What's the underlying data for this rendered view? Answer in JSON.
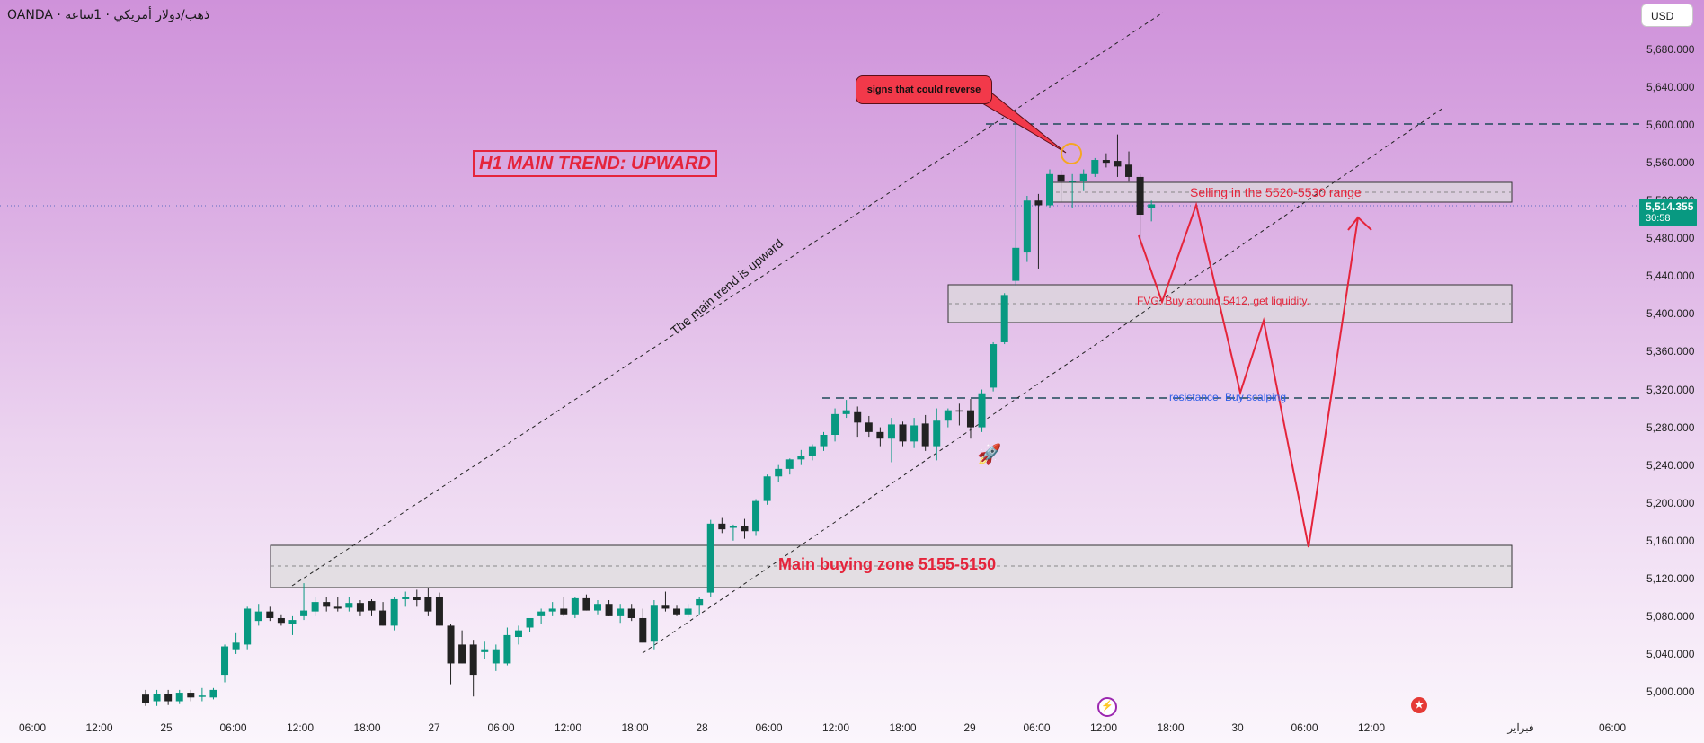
{
  "header": {
    "symbol_line": "OANDA · ذهب/دولار أمريكي · 1ساعة",
    "currency": "USD"
  },
  "price_label": {
    "price": "5,514.355",
    "countdown": "30:58"
  },
  "annotations": {
    "trend_box": "H1 MAIN TREND: UPWARD",
    "reverse_note": "signs that could reverse",
    "selling_zone": "Selling in the 5520-5530 range",
    "fvg_zone": "FVG: Buy around 5412, get liquidity.",
    "resistance": "resistance- Buy scalping",
    "main_zone": "Main buying zone 5155-5150",
    "trend_text": "The main trend is upward."
  },
  "icons": {
    "marker1": "lightning-icon",
    "marker2": "us-flag-icon",
    "rocket": "rocket-icon"
  },
  "colors": {
    "up": "#089981",
    "down": "#222222",
    "accent": "#e5243b",
    "resistance": "#2f5fe8"
  },
  "chart_data": {
    "type": "candlestick",
    "instrument": "OANDA · ذهب/دولار أمريكي · 1ساعة",
    "y_range": [
      4980,
      5710
    ],
    "y_ticks": [
      5680,
      5640,
      5600,
      5560,
      5520,
      5480,
      5440,
      5400,
      5360,
      5320,
      5280,
      5240,
      5200,
      5160,
      5120,
      5080,
      5040,
      5000
    ],
    "y_tick_labels": [
      "5,680.000",
      "5,640.000",
      "5,600.000",
      "5,560.000",
      "5,520.000",
      "5,480.000",
      "5,440.000",
      "5,400.000",
      "5,360.000",
      "5,320.000",
      "5,280.000",
      "5,240.000",
      "5,200.000",
      "5,160.000",
      "5,120.000",
      "5,080.000",
      "5,040.000",
      "5,000.000"
    ],
    "x_ticks": [
      "06:00",
      "12:00",
      "25",
      "06:00",
      "12:00",
      "18:00",
      "27",
      "06:00",
      "12:00",
      "18:00",
      "28",
      "06:00",
      "12:00",
      "18:00",
      "29",
      "06:00",
      "12:00",
      "18:00",
      "30",
      "06:00",
      "12:00",
      "فبراير",
      "06:00"
    ],
    "current_price": 5514.355,
    "candles": [
      {
        "o": 4997,
        "h": 5002,
        "l": 4985,
        "c": 4988
      },
      {
        "o": 4990,
        "h": 5002,
        "l": 4985,
        "c": 4998
      },
      {
        "o": 4998,
        "h": 5002,
        "l": 4986,
        "c": 4990
      },
      {
        "o": 4990,
        "h": 5002,
        "l": 4987,
        "c": 4999
      },
      {
        "o": 4999,
        "h": 5002,
        "l": 4990,
        "c": 4994
      },
      {
        "o": 4995,
        "h": 5004,
        "l": 4990,
        "c": 4996
      },
      {
        "o": 4994,
        "h": 5004,
        "l": 4992,
        "c": 5002
      },
      {
        "o": 5018,
        "h": 5050,
        "l": 5010,
        "c": 5048
      },
      {
        "o": 5045,
        "h": 5062,
        "l": 5040,
        "c": 5052
      },
      {
        "o": 5050,
        "h": 5090,
        "l": 5045,
        "c": 5088
      },
      {
        "o": 5075,
        "h": 5093,
        "l": 5070,
        "c": 5085
      },
      {
        "o": 5085,
        "h": 5090,
        "l": 5075,
        "c": 5078
      },
      {
        "o": 5078,
        "h": 5082,
        "l": 5070,
        "c": 5073
      },
      {
        "o": 5072,
        "h": 5080,
        "l": 5060,
        "c": 5076
      },
      {
        "o": 5080,
        "h": 5115,
        "l": 5076,
        "c": 5086
      },
      {
        "o": 5085,
        "h": 5100,
        "l": 5080,
        "c": 5095
      },
      {
        "o": 5095,
        "h": 5100,
        "l": 5085,
        "c": 5090
      },
      {
        "o": 5090,
        "h": 5100,
        "l": 5085,
        "c": 5088
      },
      {
        "o": 5089,
        "h": 5100,
        "l": 5085,
        "c": 5094
      },
      {
        "o": 5094,
        "h": 5097,
        "l": 5080,
        "c": 5085
      },
      {
        "o": 5096,
        "h": 5098,
        "l": 5080,
        "c": 5086
      },
      {
        "o": 5086,
        "h": 5095,
        "l": 5070,
        "c": 5070
      },
      {
        "o": 5070,
        "h": 5100,
        "l": 5065,
        "c": 5098
      },
      {
        "o": 5098,
        "h": 5106,
        "l": 5090,
        "c": 5100
      },
      {
        "o": 5100,
        "h": 5108,
        "l": 5090,
        "c": 5097
      },
      {
        "o": 5100,
        "h": 5110,
        "l": 5080,
        "c": 5085
      },
      {
        "o": 5100,
        "h": 5105,
        "l": 5070,
        "c": 5070
      },
      {
        "o": 5070,
        "h": 5072,
        "l": 5008,
        "c": 5030
      },
      {
        "o": 5050,
        "h": 5065,
        "l": 5030,
        "c": 5030
      },
      {
        "o": 5050,
        "h": 5055,
        "l": 4995,
        "c": 5018
      },
      {
        "o": 5042,
        "h": 5053,
        "l": 5035,
        "c": 5045
      },
      {
        "o": 5030,
        "h": 5050,
        "l": 5022,
        "c": 5045
      },
      {
        "o": 5030,
        "h": 5068,
        "l": 5028,
        "c": 5060
      },
      {
        "o": 5058,
        "h": 5070,
        "l": 5050,
        "c": 5065
      },
      {
        "o": 5068,
        "h": 5078,
        "l": 5063,
        "c": 5078
      },
      {
        "o": 5080,
        "h": 5088,
        "l": 5072,
        "c": 5085
      },
      {
        "o": 5085,
        "h": 5095,
        "l": 5080,
        "c": 5088
      },
      {
        "o": 5088,
        "h": 5100,
        "l": 5080,
        "c": 5082
      },
      {
        "o": 5082,
        "h": 5100,
        "l": 5078,
        "c": 5099
      },
      {
        "o": 5099,
        "h": 5103,
        "l": 5086,
        "c": 5086
      },
      {
        "o": 5086,
        "h": 5097,
        "l": 5082,
        "c": 5093
      },
      {
        "o": 5093,
        "h": 5097,
        "l": 5080,
        "c": 5080
      },
      {
        "o": 5080,
        "h": 5093,
        "l": 5073,
        "c": 5088
      },
      {
        "o": 5088,
        "h": 5093,
        "l": 5075,
        "c": 5078
      },
      {
        "o": 5078,
        "h": 5088,
        "l": 5052,
        "c": 5052
      },
      {
        "o": 5053,
        "h": 5097,
        "l": 5045,
        "c": 5092
      },
      {
        "o": 5092,
        "h": 5106,
        "l": 5085,
        "c": 5088
      },
      {
        "o": 5088,
        "h": 5092,
        "l": 5080,
        "c": 5082
      },
      {
        "o": 5082,
        "h": 5093,
        "l": 5079,
        "c": 5088
      },
      {
        "o": 5092,
        "h": 5100,
        "l": 5082,
        "c": 5098
      },
      {
        "o": 5105,
        "h": 5182,
        "l": 5100,
        "c": 5178
      },
      {
        "o": 5178,
        "h": 5184,
        "l": 5168,
        "c": 5172
      },
      {
        "o": 5175,
        "h": 5177,
        "l": 5160,
        "c": 5175
      },
      {
        "o": 5175,
        "h": 5183,
        "l": 5162,
        "c": 5170
      },
      {
        "o": 5170,
        "h": 5204,
        "l": 5165,
        "c": 5202
      },
      {
        "o": 5202,
        "h": 5230,
        "l": 5198,
        "c": 5228
      },
      {
        "o": 5228,
        "h": 5240,
        "l": 5222,
        "c": 5236
      },
      {
        "o": 5236,
        "h": 5247,
        "l": 5230,
        "c": 5246
      },
      {
        "o": 5246,
        "h": 5256,
        "l": 5240,
        "c": 5250
      },
      {
        "o": 5250,
        "h": 5262,
        "l": 5245,
        "c": 5260
      },
      {
        "o": 5260,
        "h": 5275,
        "l": 5255,
        "c": 5272
      },
      {
        "o": 5272,
        "h": 5300,
        "l": 5265,
        "c": 5294
      },
      {
        "o": 5294,
        "h": 5309,
        "l": 5290,
        "c": 5298
      },
      {
        "o": 5296,
        "h": 5302,
        "l": 5270,
        "c": 5285
      },
      {
        "o": 5285,
        "h": 5292,
        "l": 5270,
        "c": 5275
      },
      {
        "o": 5275,
        "h": 5280,
        "l": 5260,
        "c": 5268
      },
      {
        "o": 5268,
        "h": 5290,
        "l": 5243,
        "c": 5283
      },
      {
        "o": 5283,
        "h": 5286,
        "l": 5260,
        "c": 5265
      },
      {
        "o": 5265,
        "h": 5290,
        "l": 5258,
        "c": 5282
      },
      {
        "o": 5284,
        "h": 5293,
        "l": 5255,
        "c": 5260
      },
      {
        "o": 5260,
        "h": 5300,
        "l": 5245,
        "c": 5287
      },
      {
        "o": 5287,
        "h": 5300,
        "l": 5280,
        "c": 5298
      },
      {
        "o": 5298,
        "h": 5305,
        "l": 5282,
        "c": 5297
      },
      {
        "o": 5298,
        "h": 5310,
        "l": 5268,
        "c": 5280
      },
      {
        "o": 5280,
        "h": 5320,
        "l": 5275,
        "c": 5316
      },
      {
        "o": 5322,
        "h": 5370,
        "l": 5318,
        "c": 5368
      },
      {
        "o": 5370,
        "h": 5422,
        "l": 5368,
        "c": 5420
      },
      {
        "o": 5435,
        "h": 5602,
        "l": 5430,
        "c": 5470
      },
      {
        "o": 5465,
        "h": 5525,
        "l": 5455,
        "c": 5520
      },
      {
        "o": 5520,
        "h": 5527,
        "l": 5448,
        "c": 5515
      },
      {
        "o": 5515,
        "h": 5553,
        "l": 5512,
        "c": 5548
      },
      {
        "o": 5547,
        "h": 5552,
        "l": 5518,
        "c": 5540
      },
      {
        "o": 5540,
        "h": 5548,
        "l": 5512,
        "c": 5541
      },
      {
        "o": 5541,
        "h": 5553,
        "l": 5530,
        "c": 5548
      },
      {
        "o": 5548,
        "h": 5565,
        "l": 5545,
        "c": 5563
      },
      {
        "o": 5563,
        "h": 5570,
        "l": 5555,
        "c": 5560
      },
      {
        "o": 5562,
        "h": 5590,
        "l": 5545,
        "c": 5556
      },
      {
        "o": 5558,
        "h": 5572,
        "l": 5540,
        "c": 5545
      },
      {
        "o": 5545,
        "h": 5548,
        "l": 5470,
        "c": 5505
      },
      {
        "o": 5512,
        "h": 5520,
        "l": 5498,
        "c": 5516
      }
    ]
  }
}
